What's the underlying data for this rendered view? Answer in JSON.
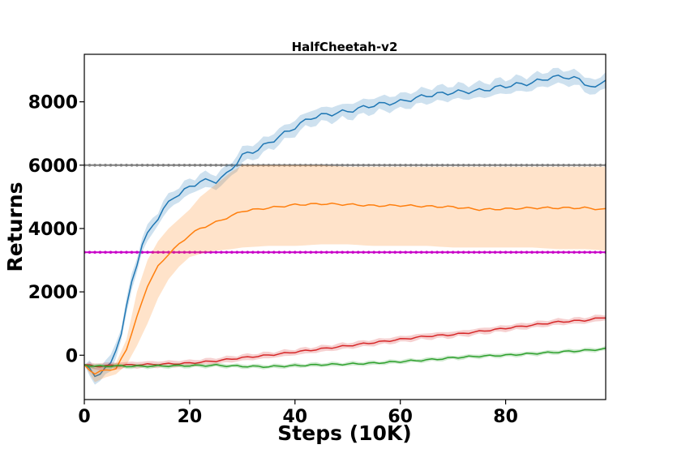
{
  "chart_data": {
    "type": "line",
    "title": "HalfCheetah-v2",
    "xlabel": "Steps (10K)",
    "ylabel": "Returns",
    "xlim": [
      0,
      99
    ],
    "ylim": [
      -1400,
      9500
    ],
    "xticks": [
      0,
      20,
      40,
      60,
      80
    ],
    "yticks": [
      0,
      2000,
      4000,
      6000,
      8000
    ],
    "grid": false,
    "legend": "none",
    "series": [
      {
        "color": "#1f77b4",
        "knots_x": [
          0,
          2,
          5,
          7,
          9,
          11,
          13,
          15,
          17,
          20,
          22,
          25,
          27,
          30,
          33,
          36,
          40,
          43,
          46,
          50,
          55,
          60,
          65,
          70,
          75,
          80,
          85,
          88,
          91,
          94,
          97,
          99
        ],
        "knots_y": [
          -300,
          -650,
          -300,
          700,
          2300,
          3500,
          4100,
          4600,
          5000,
          5300,
          5500,
          5500,
          5700,
          6300,
          6500,
          6800,
          7200,
          7500,
          7600,
          7700,
          7900,
          8000,
          8200,
          8300,
          8350,
          8500,
          8600,
          8750,
          8800,
          8700,
          8400,
          8750
        ],
        "band_width": 220
      },
      {
        "color": "#ff7f0e",
        "knots_x": [
          0,
          2,
          4,
          6,
          8,
          10,
          12,
          14,
          16,
          18,
          20,
          22,
          25,
          28,
          30,
          35,
          40,
          45,
          50,
          55,
          60,
          65,
          70,
          75,
          80,
          85,
          90,
          95,
          99
        ],
        "knots_y": [
          -300,
          -600,
          -450,
          -450,
          200,
          1200,
          2200,
          2800,
          3200,
          3500,
          3800,
          4000,
          4200,
          4400,
          4550,
          4650,
          4750,
          4780,
          4760,
          4720,
          4730,
          4700,
          4680,
          4600,
          4620,
          4650,
          4650,
          4650,
          4600
        ],
        "band_low_y": [
          -300,
          -850,
          -700,
          -600,
          -300,
          300,
          1000,
          1800,
          2400,
          2800,
          3100,
          3200,
          3300,
          3350,
          3400,
          3450,
          3450,
          3500,
          3500,
          3450,
          3450,
          3450,
          3400,
          3400,
          3400,
          3400,
          3350,
          3350,
          3300
        ],
        "band_high_y": [
          -300,
          -400,
          -300,
          -250,
          500,
          2000,
          3000,
          3600,
          4000,
          4300,
          4600,
          5000,
          5400,
          5800,
          6000,
          6000,
          6000,
          6000,
          5950,
          5950,
          5950,
          5950,
          5950,
          5950,
          5950,
          5950,
          5950,
          5950,
          5950
        ]
      },
      {
        "color": "#d62728",
        "knots_x": [
          0,
          2,
          5,
          10,
          15,
          20,
          25,
          30,
          35,
          40,
          45,
          50,
          55,
          60,
          65,
          70,
          75,
          80,
          85,
          90,
          95,
          99
        ],
        "knots_y": [
          -300,
          -350,
          -330,
          -300,
          -280,
          -250,
          -180,
          -80,
          0,
          100,
          200,
          300,
          400,
          500,
          600,
          650,
          750,
          850,
          950,
          1050,
          1100,
          1200
        ],
        "band_width": 90
      },
      {
        "color": "#2ca02c",
        "knots_x": [
          0,
          2,
          5,
          10,
          15,
          20,
          25,
          30,
          35,
          40,
          45,
          50,
          55,
          60,
          65,
          70,
          75,
          80,
          85,
          90,
          95,
          99
        ],
        "knots_y": [
          -300,
          -350,
          -340,
          -350,
          -340,
          -330,
          -320,
          -350,
          -360,
          -330,
          -300,
          -280,
          -250,
          -200,
          -150,
          -80,
          -30,
          0,
          50,
          100,
          150,
          200
        ],
        "band_width": 60
      }
    ],
    "reference_lines": [
      {
        "y": 6000,
        "color": "#7f7f7f"
      },
      {
        "y": 3250,
        "color": "#c800c8"
      }
    ]
  }
}
